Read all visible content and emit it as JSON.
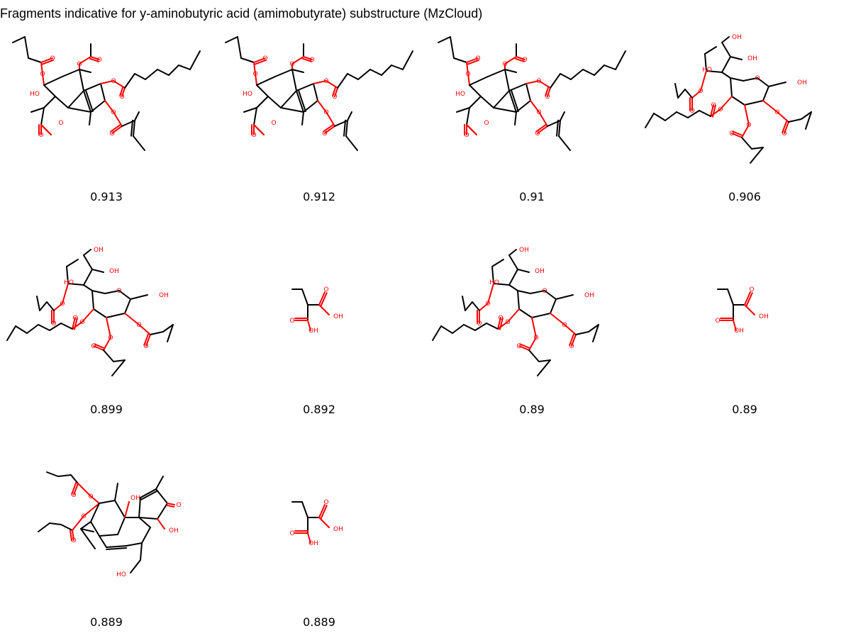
{
  "title": "Fragments indicative for y-aminobutyric acid (amimobutyrate) substructure (MzCloud)",
  "colors": {
    "bond": "#000000",
    "heteroatom": "#ff0000",
    "background": "#ffffff"
  },
  "cells": [
    {
      "structure": "phorbol-like-A",
      "score": "0.913"
    },
    {
      "structure": "phorbol-like-A",
      "score": "0.912"
    },
    {
      "structure": "phorbol-like-A",
      "score": "0.91"
    },
    {
      "structure": "sucrose-ester",
      "score": "0.906"
    },
    {
      "structure": "sucrose-ester",
      "score": "0.899"
    },
    {
      "structure": "ethylmalonic-acid",
      "score": "0.892"
    },
    {
      "structure": "sucrose-ester",
      "score": "0.89"
    },
    {
      "structure": "ethylmalonic-acid",
      "score": "0.89"
    },
    {
      "structure": "phorbol-like-B",
      "score": "0.889"
    },
    {
      "structure": "ethylmalonic-acid",
      "score": "0.889"
    }
  ],
  "atom_labels": {
    "oxygen": "O",
    "hydroxyl_right": "OH",
    "hydroxyl_left": "HO"
  }
}
